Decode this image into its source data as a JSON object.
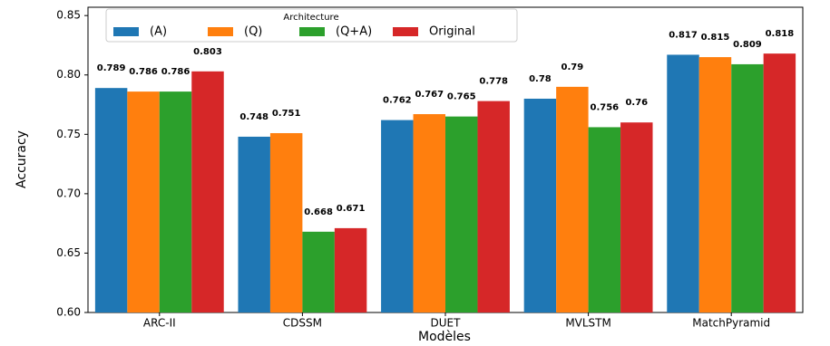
{
  "chart_data": {
    "type": "bar",
    "categories": [
      "ARC-II",
      "CDSSM",
      "DUET",
      "MVLSTM",
      "MatchPyramid"
    ],
    "series": [
      {
        "name": "(A)",
        "color": "#1f77b4",
        "values": [
          0.789,
          0.748,
          0.762,
          0.78,
          0.817
        ]
      },
      {
        "name": "(Q)",
        "color": "#ff7f0e",
        "values": [
          0.786,
          0.751,
          0.767,
          0.79,
          0.815
        ]
      },
      {
        "name": "(Q+A)",
        "color": "#2ca02c",
        "values": [
          0.786,
          0.668,
          0.765,
          0.756,
          0.809
        ]
      },
      {
        "name": "Original",
        "color": "#d62728",
        "values": [
          0.803,
          0.671,
          0.778,
          0.76,
          0.818
        ]
      }
    ],
    "legend_title": "Architecture",
    "legend_position": "top-left",
    "xlabel": "Modèles",
    "ylabel": "Accuracy",
    "ylim": [
      0.6,
      0.857
    ],
    "yticks": [
      {
        "value": 0.6,
        "label": "0.60"
      },
      0.65,
      {
        "value": 0.7,
        "label": "0.70"
      },
      0.75,
      {
        "value": 0.8,
        "label": "0.80"
      },
      0.85
    ]
  }
}
